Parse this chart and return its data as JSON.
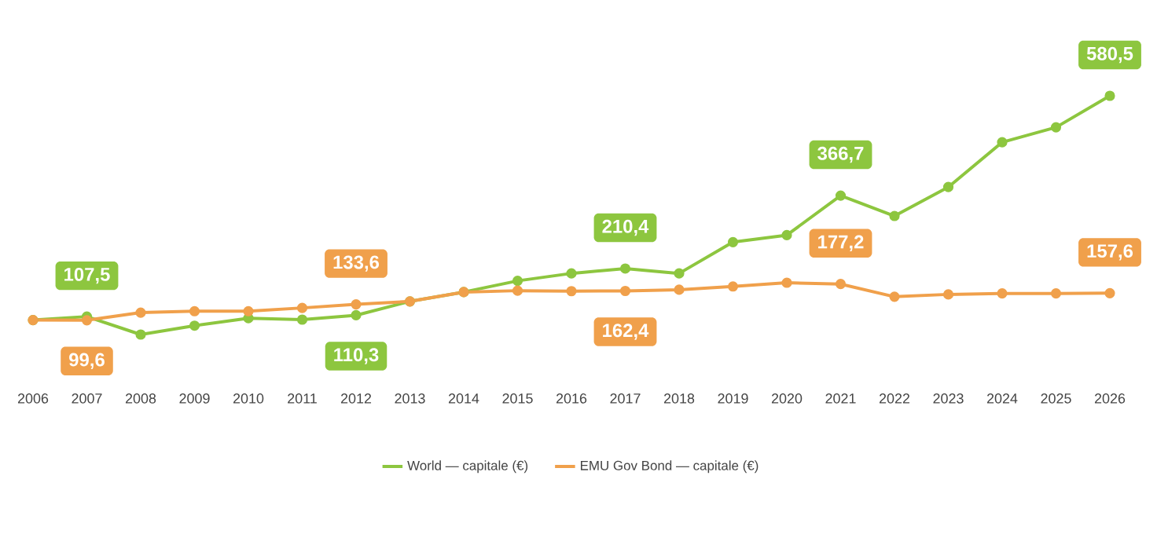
{
  "chart_data": {
    "type": "line",
    "categories": [
      "2006",
      "2007",
      "2008",
      "2009",
      "2010",
      "2011",
      "2012",
      "2013",
      "2014",
      "2015",
      "2016",
      "2017",
      "2018",
      "2019",
      "2020",
      "2021",
      "2022",
      "2023",
      "2024",
      "2025",
      "2026"
    ],
    "series": [
      {
        "name": "World — capitale (€)",
        "color": "#8dc63f",
        "values": [
          100,
          107.5,
          69,
          88,
          104,
          101,
          110.3,
          140,
          160,
          184,
          200,
          210.4,
          200,
          267,
          282,
          366.7,
          323,
          385,
          481,
          513,
          580.5
        ],
        "value_labels": [
          null,
          "107,5",
          null,
          null,
          null,
          null,
          "110,3",
          null,
          null,
          null,
          null,
          "210,4",
          null,
          null,
          null,
          "366,7",
          null,
          null,
          null,
          null,
          "580,5"
        ]
      },
      {
        "name": "EMU Gov Bond — capitale (€)",
        "color": "#f0a04b",
        "values": [
          100,
          99.6,
          116,
          119,
          119,
          126,
          133.6,
          140,
          160,
          163,
          162,
          162.4,
          165,
          172,
          180,
          177.2,
          150,
          155,
          157,
          157,
          157.6
        ],
        "value_labels": [
          null,
          "99,6",
          null,
          null,
          null,
          null,
          "133,6",
          null,
          null,
          null,
          null,
          "162,4",
          null,
          null,
          null,
          "177,2",
          null,
          null,
          null,
          null,
          "157,6"
        ]
      }
    ],
    "marker": "circle",
    "line_style": "solid",
    "legend": "bottom",
    "grid": false
  }
}
